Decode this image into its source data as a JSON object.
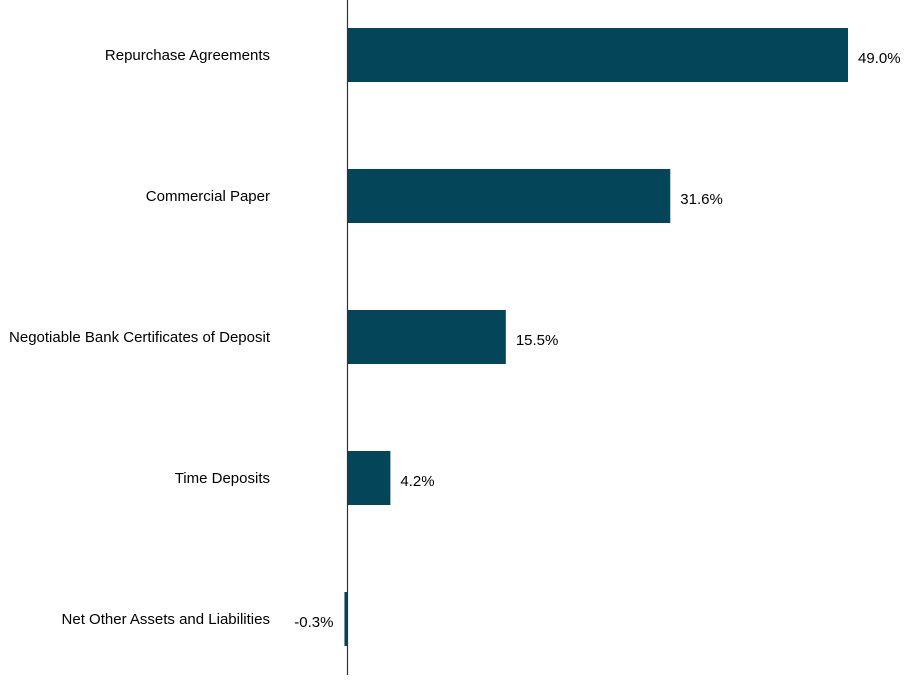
{
  "chart_data": {
    "type": "bar",
    "orientation": "horizontal",
    "title": "",
    "xlabel": "",
    "ylabel": "",
    "categories": [
      "Repurchase Agreements",
      "Commercial Paper",
      "Negotiable Bank Certificates of Deposit",
      "Time Deposits",
      "Net Other Assets and Liabilities"
    ],
    "values": [
      49.0,
      31.6,
      15.5,
      4.2,
      -0.3
    ],
    "labels": [
      "49.0%",
      "31.6%",
      "15.5%",
      "4.2%",
      "-0.3%"
    ],
    "unit": "%",
    "grid": false,
    "legend": "none",
    "colors": {
      "bar": "#05455a",
      "axis": "#333333"
    }
  }
}
